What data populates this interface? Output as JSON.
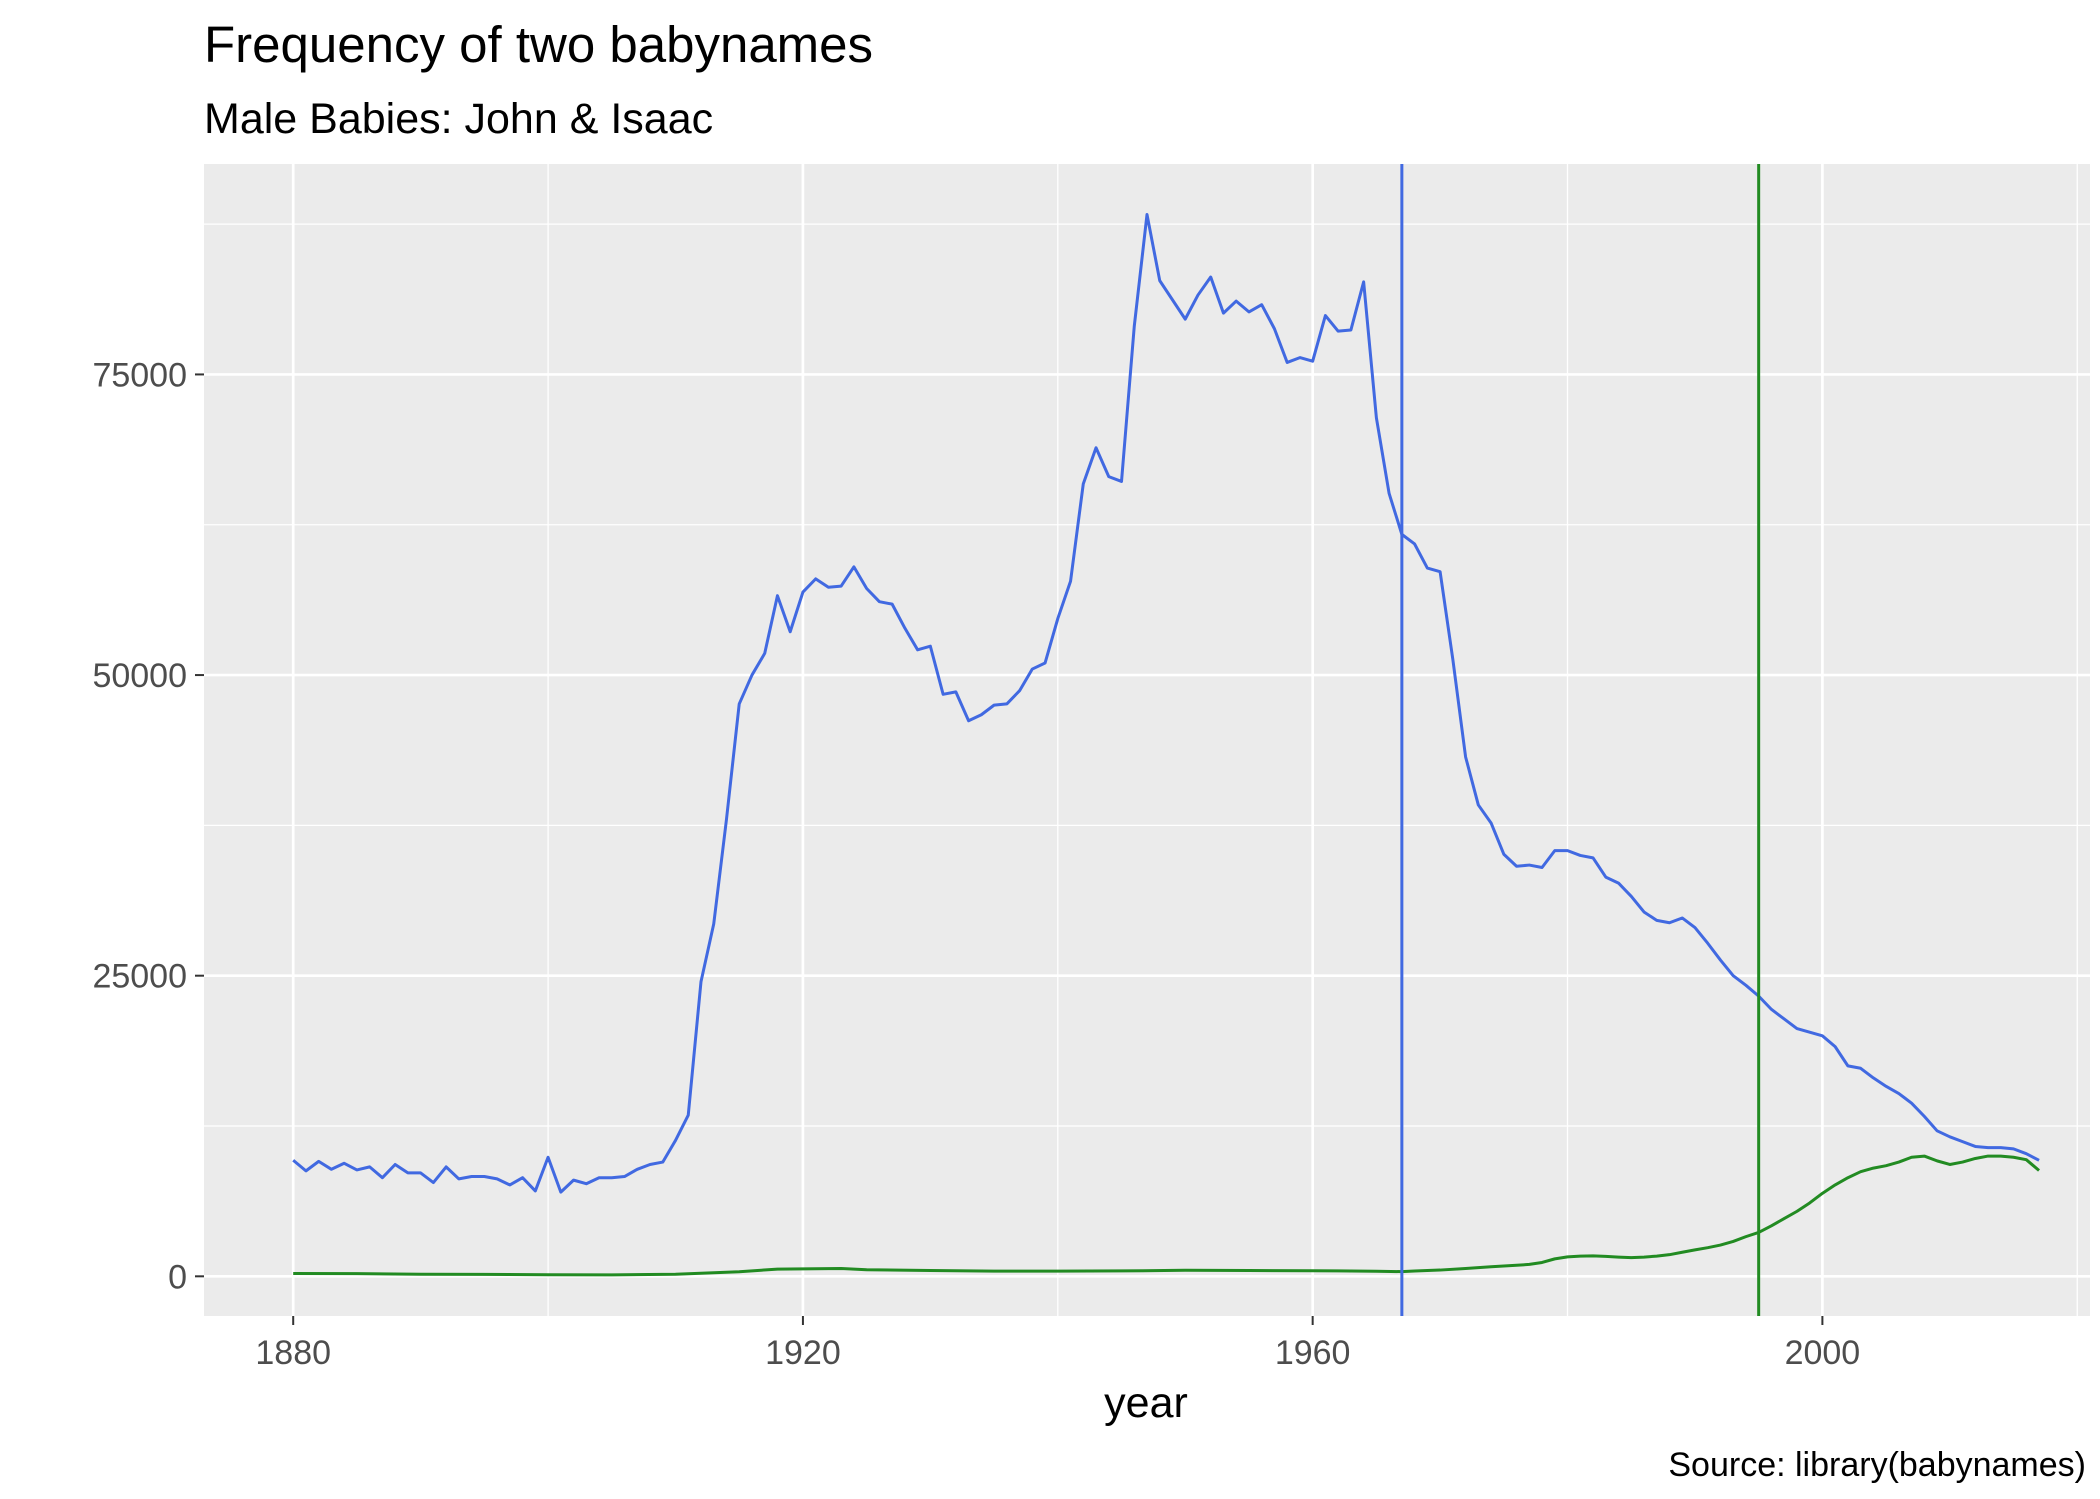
{
  "chart_data": {
    "type": "line",
    "title": "Frequency of two babynames",
    "subtitle": "Male Babies:  John & Isaac",
    "xlabel": "year",
    "ylabel": "",
    "caption": "Source:  library(babynames)",
    "xlim": [
      1873,
      2021
    ],
    "ylim": [
      -3300,
      92500
    ],
    "x_ticks": [
      1880,
      1920,
      1960,
      2000
    ],
    "y_ticks": [
      0,
      25000,
      50000,
      75000
    ],
    "grid": true,
    "legend": "none",
    "colors": {
      "panel_background": "#EBEBEB",
      "grid": "#FFFFFF",
      "axis_text": "#4D4D4D",
      "ticks": "#333333"
    },
    "vlines": [
      {
        "x": 1967,
        "color": "#4169E1"
      },
      {
        "x": 1995,
        "color": "#228B22"
      }
    ],
    "series": [
      {
        "color": "#4169E1",
        "points": [
          [
            1880,
            9650
          ],
          [
            1881,
            8770
          ],
          [
            1882,
            9560
          ],
          [
            1883,
            8900
          ],
          [
            1884,
            9400
          ],
          [
            1885,
            8850
          ],
          [
            1886,
            9100
          ],
          [
            1887,
            8200
          ],
          [
            1888,
            9300
          ],
          [
            1889,
            8600
          ],
          [
            1890,
            8600
          ],
          [
            1891,
            7800
          ],
          [
            1892,
            9100
          ],
          [
            1893,
            8100
          ],
          [
            1894,
            8300
          ],
          [
            1895,
            8300
          ],
          [
            1896,
            8100
          ],
          [
            1897,
            7600
          ],
          [
            1898,
            8200
          ],
          [
            1899,
            7100
          ],
          [
            1900,
            9900
          ],
          [
            1901,
            7000
          ],
          [
            1902,
            8000
          ],
          [
            1903,
            7700
          ],
          [
            1904,
            8200
          ],
          [
            1905,
            8200
          ],
          [
            1906,
            8300
          ],
          [
            1907,
            8900
          ],
          [
            1908,
            9300
          ],
          [
            1909,
            9500
          ],
          [
            1910,
            11300
          ],
          [
            1911,
            13400
          ],
          [
            1912,
            24500
          ],
          [
            1913,
            29300
          ],
          [
            1914,
            38000
          ],
          [
            1915,
            47600
          ],
          [
            1916,
            50000
          ],
          [
            1917,
            51800
          ],
          [
            1918,
            56600
          ],
          [
            1919,
            53600
          ],
          [
            1920,
            56900
          ],
          [
            1921,
            58000
          ],
          [
            1922,
            57300
          ],
          [
            1923,
            57400
          ],
          [
            1924,
            59000
          ],
          [
            1925,
            57200
          ],
          [
            1926,
            56100
          ],
          [
            1927,
            55900
          ],
          [
            1928,
            53900
          ],
          [
            1929,
            52100
          ],
          [
            1930,
            52400
          ],
          [
            1931,
            48400
          ],
          [
            1932,
            48600
          ],
          [
            1933,
            46200
          ],
          [
            1934,
            46700
          ],
          [
            1935,
            47500
          ],
          [
            1936,
            47600
          ],
          [
            1937,
            48700
          ],
          [
            1938,
            50500
          ],
          [
            1939,
            51000
          ],
          [
            1940,
            54700
          ],
          [
            1941,
            57800
          ],
          [
            1942,
            65900
          ],
          [
            1943,
            68900
          ],
          [
            1944,
            66500
          ],
          [
            1945,
            66100
          ],
          [
            1946,
            79000
          ],
          [
            1947,
            88300
          ],
          [
            1948,
            82800
          ],
          [
            1949,
            81200
          ],
          [
            1950,
            79600
          ],
          [
            1951,
            81600
          ],
          [
            1952,
            83100
          ],
          [
            1953,
            80100
          ],
          [
            1954,
            81100
          ],
          [
            1955,
            80200
          ],
          [
            1956,
            80800
          ],
          [
            1957,
            78800
          ],
          [
            1958,
            76000
          ],
          [
            1959,
            76400
          ],
          [
            1960,
            76100
          ],
          [
            1961,
            79900
          ],
          [
            1962,
            78600
          ],
          [
            1963,
            78700
          ],
          [
            1964,
            82700
          ],
          [
            1965,
            71400
          ],
          [
            1966,
            65100
          ],
          [
            1967,
            61700
          ],
          [
            1968,
            60900
          ],
          [
            1969,
            58900
          ],
          [
            1970,
            58600
          ],
          [
            1971,
            51300
          ],
          [
            1972,
            43200
          ],
          [
            1973,
            39200
          ],
          [
            1974,
            37700
          ],
          [
            1975,
            35100
          ],
          [
            1976,
            34100
          ],
          [
            1977,
            34200
          ],
          [
            1978,
            34000
          ],
          [
            1979,
            35400
          ],
          [
            1980,
            35400
          ],
          [
            1981,
            35000
          ],
          [
            1982,
            34800
          ],
          [
            1983,
            33200
          ],
          [
            1984,
            32700
          ],
          [
            1985,
            31600
          ],
          [
            1986,
            30300
          ],
          [
            1987,
            29600
          ],
          [
            1988,
            29400
          ],
          [
            1989,
            29800
          ],
          [
            1990,
            29000
          ],
          [
            1991,
            27700
          ],
          [
            1992,
            26300
          ],
          [
            1993,
            25000
          ],
          [
            1994,
            24200
          ],
          [
            1995,
            23300
          ],
          [
            1996,
            22200
          ],
          [
            1997,
            21400
          ],
          [
            1998,
            20600
          ],
          [
            1999,
            20300
          ],
          [
            2000,
            20000
          ],
          [
            2001,
            19100
          ],
          [
            2002,
            17500
          ],
          [
            2003,
            17300
          ],
          [
            2004,
            16500
          ],
          [
            2005,
            15800
          ],
          [
            2006,
            15200
          ],
          [
            2007,
            14400
          ],
          [
            2008,
            13300
          ],
          [
            2009,
            12100
          ],
          [
            2010,
            11600
          ],
          [
            2011,
            11200
          ],
          [
            2012,
            10800
          ],
          [
            2013,
            10700
          ],
          [
            2014,
            10700
          ],
          [
            2015,
            10600
          ],
          [
            2016,
            10200
          ],
          [
            2017,
            9650
          ]
        ]
      },
      {
        "color": "#228B22",
        "points": [
          [
            1880,
            230
          ],
          [
            1885,
            220
          ],
          [
            1890,
            170
          ],
          [
            1895,
            160
          ],
          [
            1900,
            130
          ],
          [
            1905,
            120
          ],
          [
            1910,
            170
          ],
          [
            1912,
            260
          ],
          [
            1915,
            380
          ],
          [
            1918,
            600
          ],
          [
            1920,
            620
          ],
          [
            1923,
            650
          ],
          [
            1925,
            550
          ],
          [
            1930,
            480
          ],
          [
            1935,
            430
          ],
          [
            1940,
            430
          ],
          [
            1945,
            450
          ],
          [
            1950,
            500
          ],
          [
            1955,
            480
          ],
          [
            1960,
            460
          ],
          [
            1962,
            450
          ],
          [
            1965,
            420
          ],
          [
            1967,
            390
          ],
          [
            1968,
            440
          ],
          [
            1970,
            520
          ],
          [
            1972,
            650
          ],
          [
            1974,
            800
          ],
          [
            1976,
            920
          ],
          [
            1977,
            990
          ],
          [
            1978,
            1150
          ],
          [
            1979,
            1450
          ],
          [
            1980,
            1620
          ],
          [
            1981,
            1680
          ],
          [
            1982,
            1700
          ],
          [
            1983,
            1660
          ],
          [
            1984,
            1600
          ],
          [
            1985,
            1550
          ],
          [
            1986,
            1600
          ],
          [
            1987,
            1680
          ],
          [
            1988,
            1800
          ],
          [
            1989,
            2000
          ],
          [
            1990,
            2200
          ],
          [
            1991,
            2380
          ],
          [
            1992,
            2600
          ],
          [
            1993,
            2900
          ],
          [
            1994,
            3300
          ],
          [
            1995,
            3650
          ],
          [
            1996,
            4200
          ],
          [
            1997,
            4800
          ],
          [
            1998,
            5400
          ],
          [
            1999,
            6100
          ],
          [
            2000,
            6900
          ],
          [
            2001,
            7600
          ],
          [
            2002,
            8200
          ],
          [
            2003,
            8700
          ],
          [
            2004,
            9000
          ],
          [
            2005,
            9200
          ],
          [
            2006,
            9500
          ],
          [
            2007,
            9900
          ],
          [
            2008,
            10000
          ],
          [
            2009,
            9600
          ],
          [
            2010,
            9300
          ],
          [
            2011,
            9500
          ],
          [
            2012,
            9800
          ],
          [
            2013,
            10000
          ],
          [
            2014,
            10000
          ],
          [
            2015,
            9900
          ],
          [
            2016,
            9700
          ],
          [
            2017,
            8800
          ]
        ]
      }
    ]
  }
}
